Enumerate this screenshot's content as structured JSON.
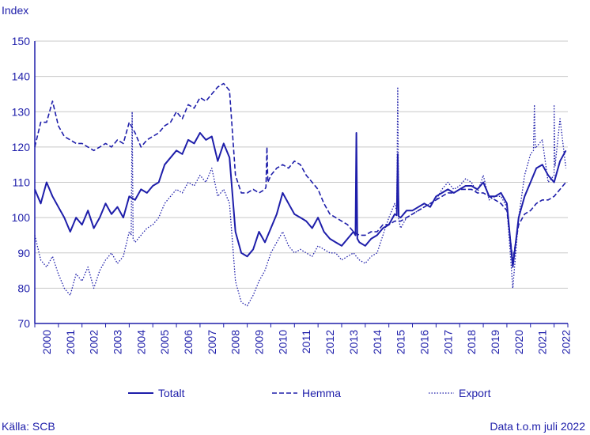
{
  "chart_data": {
    "type": "line",
    "ylabel": "Index",
    "xlabel": "",
    "ylim": [
      70,
      150
    ],
    "yticks": [
      70,
      80,
      90,
      100,
      110,
      120,
      130,
      140,
      150
    ],
    "xlim": [
      2000,
      2022.583
    ],
    "year_labels": [
      "2000",
      "2001",
      "2002",
      "2003",
      "2004",
      "2005",
      "2006",
      "2007",
      "2008",
      "2009",
      "2010",
      "2011",
      "2012",
      "2013",
      "2014",
      "2015",
      "2016",
      "2017",
      "2018",
      "2019",
      "2020",
      "2021",
      "2022"
    ],
    "grid": "horizontal",
    "legend_position": "bottom",
    "colors": {
      "line": "#1e1eaa",
      "grid": "#c8c8c8",
      "axis": "#1e1eaa"
    },
    "series": [
      {
        "name": "Totalt",
        "style": "solid",
        "x": [
          2000.0,
          2000.25,
          2000.5,
          2000.75,
          2001.0,
          2001.25,
          2001.5,
          2001.75,
          2002.0,
          2002.25,
          2002.5,
          2002.75,
          2003.0,
          2003.25,
          2003.5,
          2003.75,
          2004.0,
          2004.25,
          2004.5,
          2004.75,
          2005.0,
          2005.25,
          2005.5,
          2005.75,
          2006.0,
          2006.25,
          2006.5,
          2006.75,
          2007.0,
          2007.25,
          2007.5,
          2007.75,
          2008.0,
          2008.25,
          2008.5,
          2008.75,
          2009.0,
          2009.25,
          2009.5,
          2009.75,
          2010.0,
          2010.25,
          2010.5,
          2010.75,
          2011.0,
          2011.25,
          2011.5,
          2011.75,
          2012.0,
          2012.25,
          2012.5,
          2012.75,
          2013.0,
          2013.25,
          2013.5,
          2013.75,
          2014.0,
          2014.25,
          2014.5,
          2014.75,
          2015.0,
          2015.25,
          2015.5,
          2015.75,
          2016.0,
          2016.25,
          2016.5,
          2016.75,
          2017.0,
          2017.25,
          2017.5,
          2017.75,
          2018.0,
          2018.25,
          2018.5,
          2018.75,
          2019.0,
          2019.25,
          2019.5,
          2019.75,
          2020.0,
          2020.25,
          2020.5,
          2020.75,
          2021.0,
          2021.25,
          2021.5,
          2021.75,
          2022.0,
          2022.25,
          2022.5
        ],
        "values": [
          108,
          104,
          110,
          106,
          103,
          100,
          96,
          100,
          98,
          102,
          97,
          100,
          104,
          101,
          103,
          100,
          106,
          105,
          108,
          107,
          109,
          110,
          115,
          117,
          119,
          118,
          122,
          121,
          124,
          122,
          123,
          116,
          121,
          117,
          96,
          90,
          89,
          91,
          96,
          93,
          97,
          101,
          107,
          104,
          101,
          100,
          99,
          97,
          100,
          96,
          94,
          93,
          92,
          94,
          96,
          93,
          92,
          94,
          95,
          97,
          98,
          101,
          100,
          102,
          102,
          103,
          104,
          103,
          106,
          107,
          108,
          107,
          108,
          109,
          109,
          108,
          110,
          106,
          106,
          107,
          104,
          86,
          100,
          106,
          110,
          114,
          115,
          112,
          110,
          116,
          119
        ]
      },
      {
        "name": "Hemma",
        "style": "dashed",
        "x": [
          2000.0,
          2000.25,
          2000.5,
          2000.75,
          2001.0,
          2001.25,
          2001.5,
          2001.75,
          2002.0,
          2002.25,
          2002.5,
          2002.75,
          2003.0,
          2003.25,
          2003.5,
          2003.75,
          2004.0,
          2004.25,
          2004.5,
          2004.75,
          2005.0,
          2005.25,
          2005.5,
          2005.75,
          2006.0,
          2006.25,
          2006.5,
          2006.75,
          2007.0,
          2007.25,
          2007.5,
          2007.75,
          2008.0,
          2008.25,
          2008.5,
          2008.75,
          2009.0,
          2009.25,
          2009.5,
          2009.75,
          2010.0,
          2010.25,
          2010.5,
          2010.75,
          2011.0,
          2011.25,
          2011.5,
          2011.75,
          2012.0,
          2012.25,
          2012.5,
          2012.75,
          2013.0,
          2013.25,
          2013.5,
          2013.75,
          2014.0,
          2014.25,
          2014.5,
          2014.75,
          2015.0,
          2015.25,
          2015.5,
          2015.75,
          2016.0,
          2016.25,
          2016.5,
          2016.75,
          2017.0,
          2017.25,
          2017.5,
          2017.75,
          2018.0,
          2018.25,
          2018.5,
          2018.75,
          2019.0,
          2019.25,
          2019.5,
          2019.75,
          2020.0,
          2020.25,
          2020.5,
          2020.75,
          2021.0,
          2021.25,
          2021.5,
          2021.75,
          2022.0,
          2022.25,
          2022.5
        ],
        "values": [
          120,
          127,
          127,
          133,
          126,
          123,
          122,
          121,
          121,
          120,
          119,
          120,
          121,
          120,
          122,
          121,
          127,
          124,
          120,
          122,
          123,
          124,
          126,
          127,
          130,
          128,
          132,
          131,
          134,
          133,
          135,
          137,
          138,
          136,
          112,
          107,
          107,
          108,
          107,
          108,
          112,
          114,
          115,
          114,
          116,
          115,
          112,
          110,
          108,
          104,
          101,
          100,
          99,
          98,
          96,
          95,
          95,
          96,
          96,
          98,
          98,
          99,
          99,
          100,
          101,
          102,
          103,
          104,
          105,
          106,
          107,
          107,
          108,
          108,
          108,
          107,
          107,
          106,
          105,
          104,
          102,
          88,
          98,
          101,
          102,
          104,
          105,
          105,
          106,
          108,
          110
        ]
      },
      {
        "name": "Export",
        "style": "dotted",
        "x": [
          2000.0,
          2000.25,
          2000.5,
          2000.75,
          2001.0,
          2001.25,
          2001.5,
          2001.75,
          2002.0,
          2002.25,
          2002.5,
          2002.75,
          2003.0,
          2003.25,
          2003.5,
          2003.75,
          2004.0,
          2004.25,
          2004.5,
          2004.75,
          2005.0,
          2005.25,
          2005.5,
          2005.75,
          2006.0,
          2006.25,
          2006.5,
          2006.75,
          2007.0,
          2007.25,
          2007.5,
          2007.75,
          2008.0,
          2008.25,
          2008.5,
          2008.75,
          2009.0,
          2009.25,
          2009.5,
          2009.75,
          2010.0,
          2010.25,
          2010.5,
          2010.75,
          2011.0,
          2011.25,
          2011.5,
          2011.75,
          2012.0,
          2012.25,
          2012.5,
          2012.75,
          2013.0,
          2013.25,
          2013.5,
          2013.75,
          2014.0,
          2014.25,
          2014.5,
          2014.75,
          2015.0,
          2015.25,
          2015.5,
          2015.75,
          2016.0,
          2016.25,
          2016.5,
          2016.75,
          2017.0,
          2017.25,
          2017.5,
          2017.75,
          2018.0,
          2018.25,
          2018.5,
          2018.75,
          2019.0,
          2019.25,
          2019.5,
          2019.75,
          2020.0,
          2020.25,
          2020.5,
          2020.75,
          2021.0,
          2021.25,
          2021.5,
          2021.75,
          2022.0,
          2022.25,
          2022.5
        ],
        "values": [
          95,
          88,
          86,
          89,
          84,
          80,
          78,
          84,
          82,
          86,
          80,
          85,
          88,
          90,
          87,
          89,
          96,
          93,
          95,
          97,
          98,
          100,
          104,
          106,
          108,
          107,
          110,
          109,
          112,
          110,
          114,
          106,
          108,
          104,
          82,
          76,
          75,
          78,
          82,
          85,
          90,
          93,
          96,
          92,
          90,
          91,
          90,
          89,
          92,
          91,
          90,
          90,
          88,
          89,
          90,
          88,
          87,
          89,
          90,
          95,
          100,
          104,
          97,
          100,
          101,
          102,
          103,
          104,
          105,
          108,
          110,
          108,
          109,
          111,
          110,
          107,
          112,
          105,
          106,
          106,
          103,
          80,
          100,
          112,
          118,
          120,
          122,
          110,
          112,
          128,
          114
        ]
      }
    ],
    "spikes": [
      {
        "series": "Totalt",
        "x": 2013.625,
        "value": 124
      },
      {
        "series": "Totalt",
        "x": 2015.375,
        "value": 118
      },
      {
        "series": "Export",
        "x": 2015.375,
        "value": 137
      },
      {
        "series": "Export",
        "x": 2004.125,
        "value": 130
      },
      {
        "series": "Hemma",
        "x": 2009.833,
        "value": 120
      },
      {
        "series": "Export",
        "x": 2021.167,
        "value": 132
      },
      {
        "series": "Export",
        "x": 2022.0,
        "value": 132
      }
    ]
  },
  "footer": {
    "source": "Källa: SCB",
    "data_note": "Data t.o.m juli 2022"
  }
}
